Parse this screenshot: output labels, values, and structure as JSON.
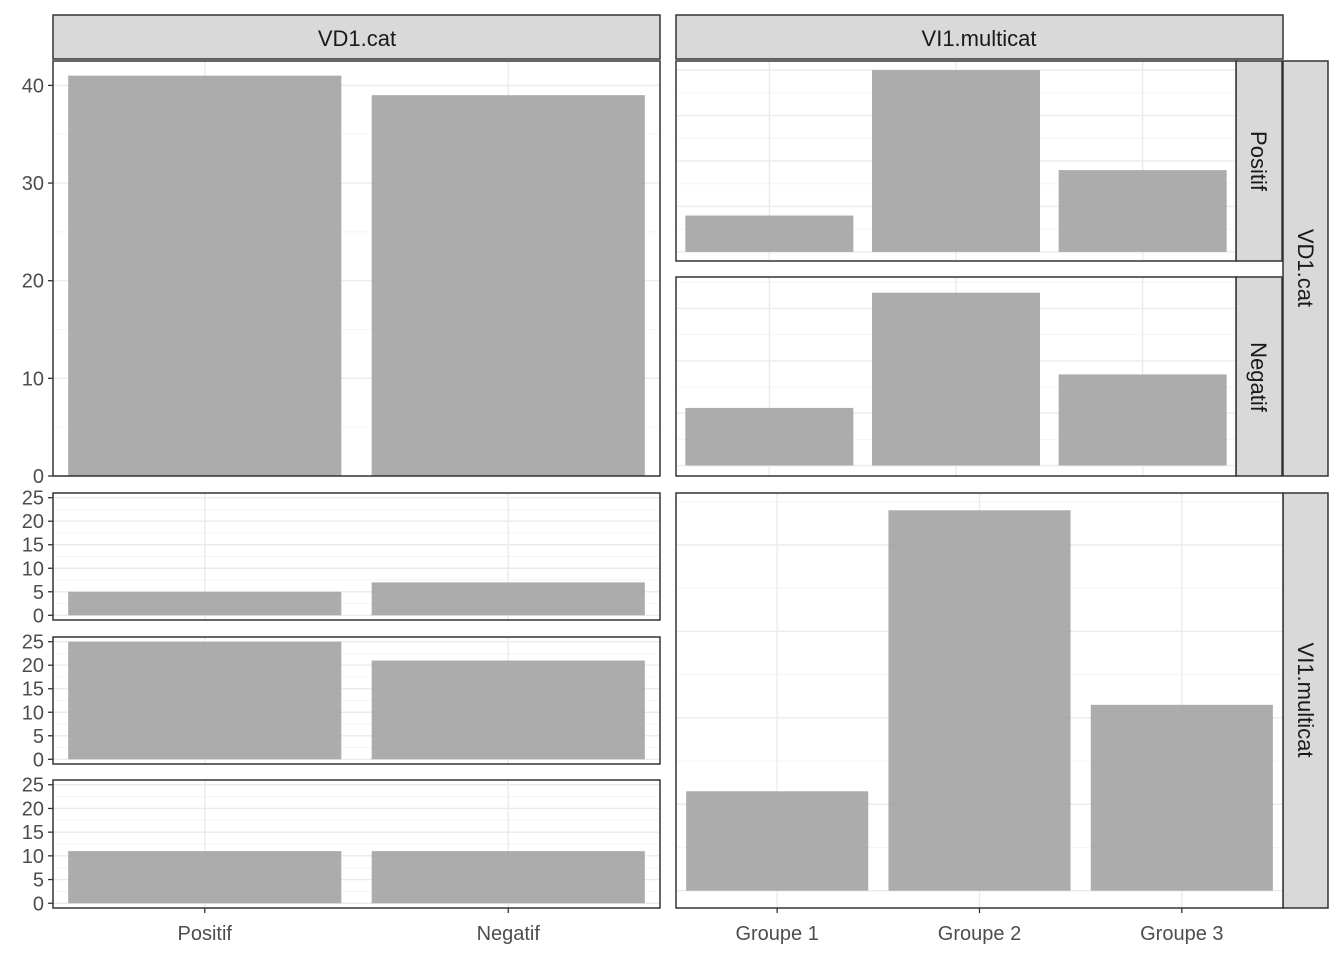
{
  "colors": {
    "bar": "#a3a3a3",
    "strip_fill": "#d9d9d9",
    "strip_border": "#333333",
    "panel_border": "#333333",
    "grid_major": "#ebebeb",
    "grid_minor": "#f5f5f5",
    "tick_text": "#4d4d4d",
    "strip_text": "#1a1a1a",
    "background": "#ffffff"
  },
  "strips": {
    "top_left": "VD1.cat",
    "top_right": "VI1.multicat",
    "right_positif": "Positif",
    "right_negatif": "Negatif",
    "right_vd1": "VD1.cat",
    "right_vi1": "VI1.multicat"
  },
  "chart_data": [
    {
      "id": "vd1-marginal",
      "type": "bar",
      "categories": [
        "Positif",
        "Negatif"
      ],
      "values": [
        41,
        39
      ],
      "ylim": [
        0,
        42.5
      ],
      "yticks": [
        0,
        10,
        20,
        30,
        40
      ],
      "show_yticks": true,
      "show_xticks": false,
      "grid": true
    },
    {
      "id": "vi1-by-vd1-positif",
      "type": "bar",
      "categories": [
        "Groupe 1",
        "Groupe 2",
        "Groupe 3"
      ],
      "values": [
        4,
        20,
        9
      ],
      "ylim": [
        -1,
        21
      ],
      "yticks": [
        0,
        5,
        10,
        15,
        20
      ],
      "show_yticks": false,
      "show_xticks": false,
      "grid": true
    },
    {
      "id": "vi1-by-vd1-negatif",
      "type": "bar",
      "categories": [
        "Groupe 1",
        "Groupe 2",
        "Groupe 3"
      ],
      "values": [
        5.5,
        16.5,
        8.7
      ],
      "ylim": [
        -1,
        18
      ],
      "yticks": [
        0,
        5,
        10,
        15
      ],
      "show_yticks": false,
      "show_xticks": false,
      "grid": true
    },
    {
      "id": "vd1-by-vi1-groupe1",
      "type": "bar",
      "categories": [
        "Positif",
        "Negatif"
      ],
      "values": [
        5,
        7
      ],
      "ylim": [
        -1,
        26
      ],
      "yticks": [
        0,
        5,
        10,
        15,
        20,
        25
      ],
      "show_yticks": true,
      "show_xticks": false,
      "grid": true
    },
    {
      "id": "vd1-by-vi1-groupe2",
      "type": "bar",
      "categories": [
        "Positif",
        "Negatif"
      ],
      "values": [
        25,
        21
      ],
      "ylim": [
        -1,
        26
      ],
      "yticks": [
        0,
        5,
        10,
        15,
        20,
        25
      ],
      "show_yticks": true,
      "show_xticks": false,
      "grid": true
    },
    {
      "id": "vd1-by-vi1-groupe3",
      "type": "bar",
      "categories": [
        "Positif",
        "Negatif"
      ],
      "values": [
        11,
        11
      ],
      "ylim": [
        -1,
        26
      ],
      "yticks": [
        0,
        5,
        10,
        15,
        20,
        25
      ],
      "show_yticks": true,
      "show_xticks": true,
      "grid": true
    },
    {
      "id": "vi1-marginal",
      "type": "bar",
      "categories": [
        "Groupe 1",
        "Groupe 2",
        "Groupe 3"
      ],
      "values": [
        23,
        88,
        43
      ],
      "ylim": [
        -4,
        92
      ],
      "yticks": [
        0,
        20,
        40,
        60,
        80
      ],
      "show_yticks": false,
      "show_xticks": true,
      "grid": true
    }
  ]
}
